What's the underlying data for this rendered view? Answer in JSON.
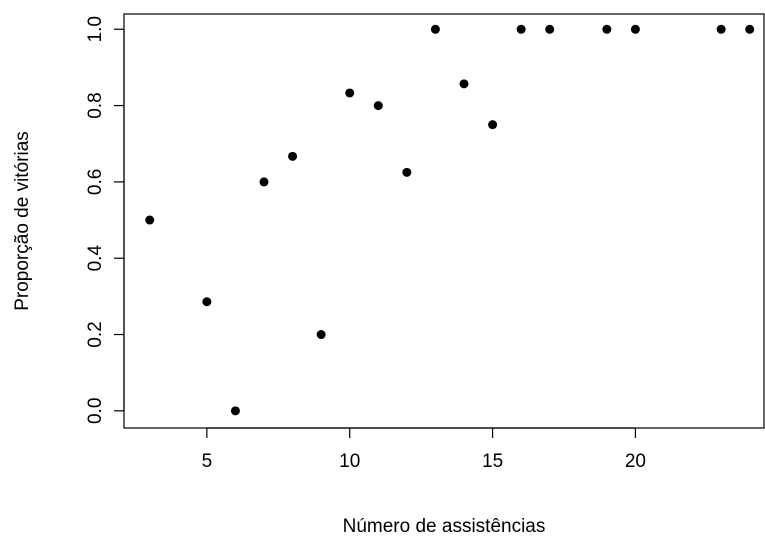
{
  "chart_data": {
    "type": "scatter",
    "xlabel": "Número de assistências",
    "ylabel": "Proporção de vitórias",
    "xlim": [
      2.1,
      24.5
    ],
    "ylim": [
      -0.045,
      1.04
    ],
    "x_ticks": [
      5,
      10,
      15,
      20
    ],
    "y_ticks": [
      0.0,
      0.2,
      0.4,
      0.6,
      0.8,
      1.0
    ],
    "x_tick_labels": [
      "5",
      "10",
      "15",
      "20"
    ],
    "y_tick_labels": [
      "0.0",
      "0.2",
      "0.4",
      "0.6",
      "0.8",
      "1.0"
    ],
    "grid": false,
    "points": [
      {
        "x": 3,
        "y": 0.5
      },
      {
        "x": 5,
        "y": 0.286
      },
      {
        "x": 6,
        "y": 0.0
      },
      {
        "x": 7,
        "y": 0.6
      },
      {
        "x": 8,
        "y": 0.667
      },
      {
        "x": 9,
        "y": 0.2
      },
      {
        "x": 10,
        "y": 0.833
      },
      {
        "x": 11,
        "y": 0.8
      },
      {
        "x": 12,
        "y": 0.625
      },
      {
        "x": 13,
        "y": 1.0
      },
      {
        "x": 14,
        "y": 0.857
      },
      {
        "x": 15,
        "y": 0.75
      },
      {
        "x": 16,
        "y": 1.0
      },
      {
        "x": 17,
        "y": 1.0
      },
      {
        "x": 19,
        "y": 1.0
      },
      {
        "x": 20,
        "y": 1.0
      },
      {
        "x": 23,
        "y": 1.0
      },
      {
        "x": 24,
        "y": 1.0
      }
    ]
  }
}
